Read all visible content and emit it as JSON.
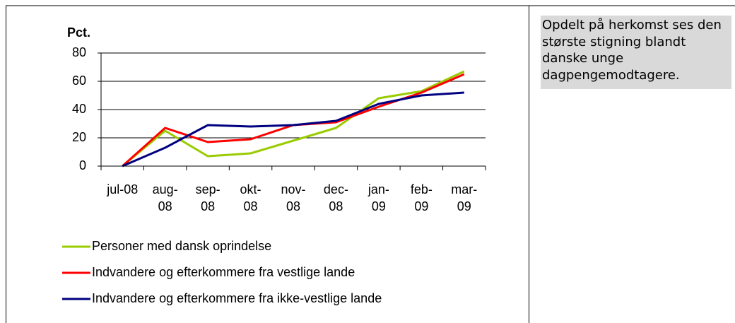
{
  "chart_data": {
    "type": "line",
    "y_label": "Pct.",
    "categories": [
      "jul-08",
      "aug-08",
      "sep-08",
      "okt-08",
      "nov-08",
      "dec-08",
      "jan-09",
      "feb-09",
      "mar-09"
    ],
    "series": [
      {
        "name": "Personer med dansk oprindelse",
        "color": "#99cc00",
        "values": [
          0,
          25,
          7,
          9,
          18,
          27,
          48,
          53,
          67
        ]
      },
      {
        "name": "Indvandere og efterkommere fra vestlige lande",
        "color": "#ff0000",
        "values": [
          0,
          27,
          17,
          19,
          29,
          31,
          42,
          52,
          65
        ]
      },
      {
        "name": "Indvandere og efterkommere fra ikke-vestlige lande",
        "color": "#000080",
        "values": [
          0,
          13,
          29,
          28,
          29,
          32,
          44,
          50,
          52
        ]
      }
    ],
    "ylim": [
      0,
      80
    ],
    "yticks": [
      0,
      20,
      40,
      60,
      80
    ],
    "grid": true
  },
  "sidebar": {
    "text": "Opdelt på herkomst ses den største stigning blandt danske unge dagpengemodtagere."
  }
}
